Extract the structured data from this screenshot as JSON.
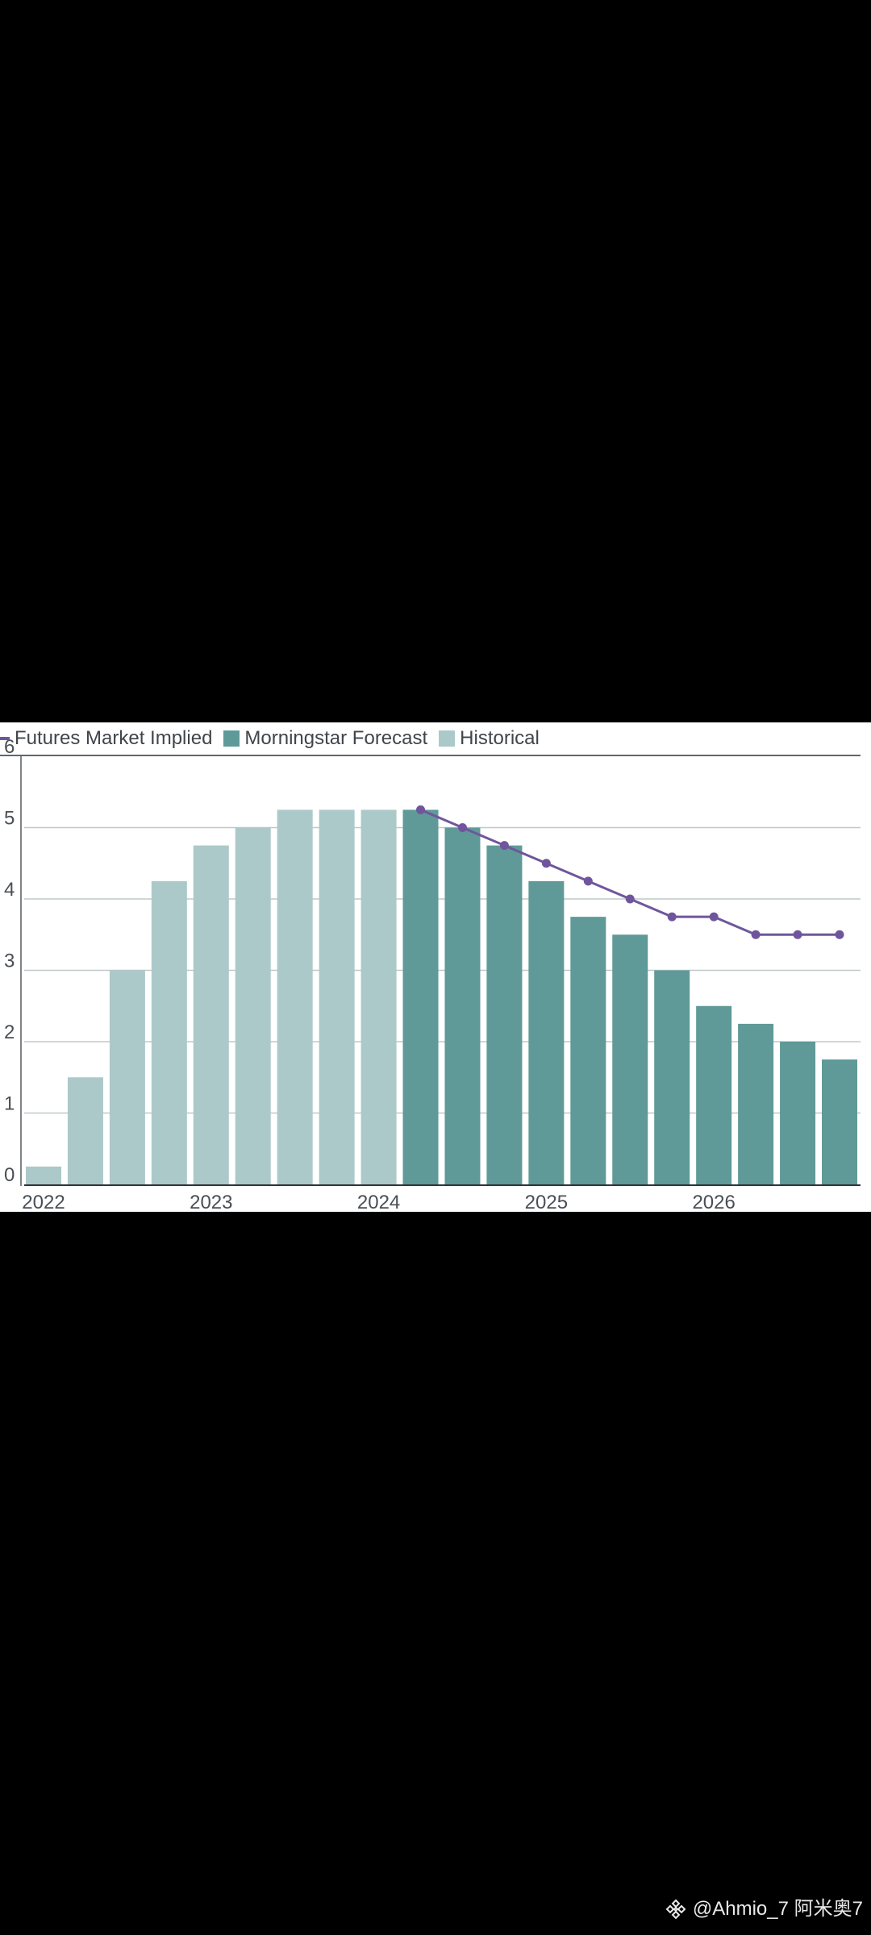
{
  "colors": {
    "futures": "#6f569c",
    "forecast": "#5f9a98",
    "historical": "#acc9c9",
    "grid": "#bfc8c8",
    "axis": "#2f3438",
    "text": "#4a4f55"
  },
  "legend": {
    "futures_label": "Futures Market Implied",
    "forecast_label": "Morningstar Forecast",
    "historical_label": "Historical"
  },
  "watermark": {
    "text": "@Ahmio_7 阿米奥7"
  },
  "chart_data": {
    "type": "bar",
    "title": "",
    "xlabel": "",
    "ylabel": "",
    "ylim": [
      0,
      6
    ],
    "grid": true,
    "legend_position": "top-left",
    "y_ticks": [
      "0",
      "1",
      "2",
      "3",
      "4",
      "5",
      "6"
    ],
    "x_tick_labels": [
      {
        "label": "2022",
        "index": 0
      },
      {
        "label": "2023",
        "index": 4
      },
      {
        "label": "2024",
        "index": 8
      },
      {
        "label": "2025",
        "index": 12
      },
      {
        "label": "2026",
        "index": 16
      }
    ],
    "series": [
      {
        "name": "Historical",
        "kind": "bar",
        "color": "#acc9c9",
        "values": [
          0.25,
          1.5,
          3.0,
          4.25,
          4.75,
          5.0,
          5.25,
          5.25,
          5.25,
          null,
          null,
          null,
          null,
          null,
          null,
          null,
          null,
          null,
          null,
          null
        ]
      },
      {
        "name": "Morningstar Forecast",
        "kind": "bar",
        "color": "#5f9a98",
        "values": [
          null,
          null,
          null,
          null,
          null,
          null,
          null,
          null,
          null,
          5.25,
          5.0,
          4.75,
          4.25,
          3.75,
          3.5,
          3.0,
          2.5,
          2.25,
          2.0,
          1.75
        ]
      },
      {
        "name": "Futures Market Implied",
        "kind": "line",
        "color": "#6f569c",
        "values": [
          null,
          null,
          null,
          null,
          null,
          null,
          null,
          null,
          null,
          5.25,
          5.0,
          4.75,
          4.5,
          4.25,
          4.0,
          3.75,
          3.75,
          3.5,
          3.5,
          3.5
        ]
      }
    ]
  }
}
